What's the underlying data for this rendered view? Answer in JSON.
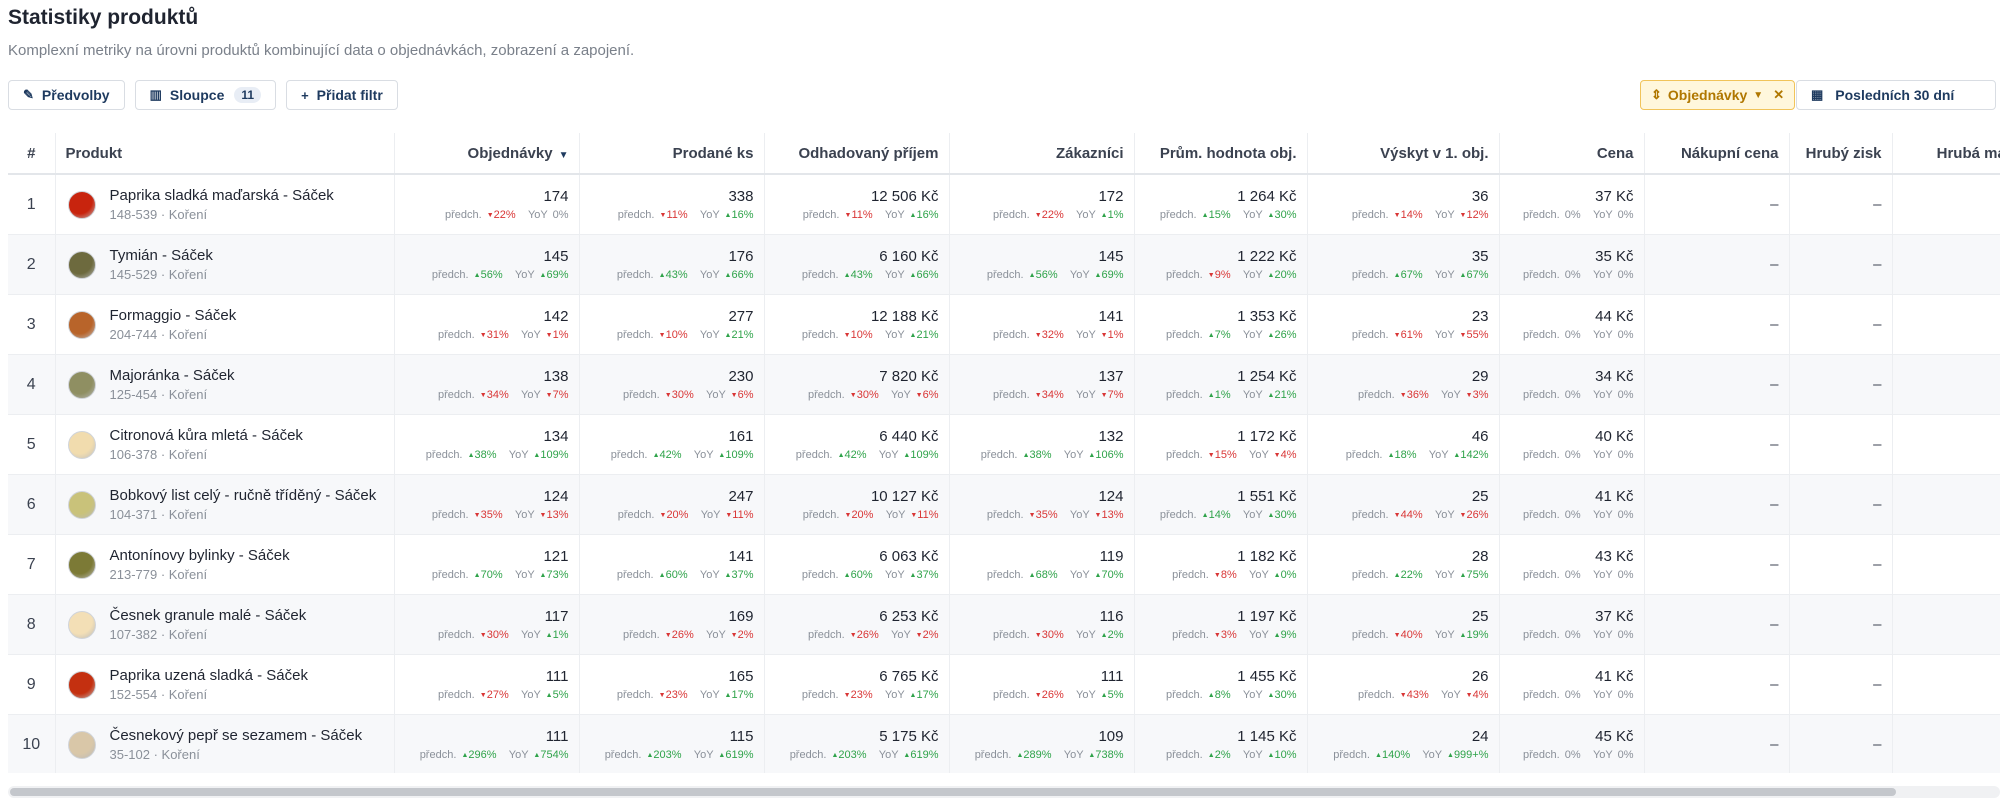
{
  "page": {
    "title": "Statistiky produktů",
    "subtitle": "Komplexní metriky na úrovni produktů kombinující data o objednávkách, zobrazení a zapojení."
  },
  "toolbar": {
    "presets_label": "Předvolby",
    "presets_icon": "pencil-icon",
    "columns_label": "Sloupce",
    "columns_icon": "table-columns-icon",
    "columns_count": "11",
    "add_filter_label": "Přidat filtr",
    "add_filter_icon": "plus-icon",
    "sort_label": "Objednávky",
    "sort_icon": "sort-icon",
    "date_label": "Posledních 30 dní",
    "date_icon": "calendar-icon"
  },
  "colors": {
    "accent": "#1e3a5f",
    "up": "#2fa34a",
    "down": "#d93636",
    "sort_bg": "#fff7dc",
    "sort_border": "#f1c45a"
  },
  "delta_labels": {
    "prev": "předch.",
    "yoy": "YoY"
  },
  "table": {
    "headers": {
      "idx": "#",
      "product": "Produkt",
      "orders": "Objednávky",
      "units": "Prodané ks",
      "revenue": "Odhadovaný příjem",
      "customers": "Zákazníci",
      "aov": "Prům. hodnota obj.",
      "first": "Výskyt v 1. obj.",
      "price": "Cena",
      "cost": "Nákupní cena",
      "gross_profit": "Hrubý zisk",
      "gross_margin": "Hrubá marže"
    },
    "dash": "–",
    "rows": [
      {
        "idx": "1",
        "name": "Paprika sladká maďarská - Sáček",
        "sku": "148-539 · Koření",
        "thumb": "#c8240e",
        "orders": {
          "v": "174",
          "p": "22%",
          "pd": "dn",
          "y": "0%",
          "yd": "zero"
        },
        "units": {
          "v": "338",
          "p": "11%",
          "pd": "dn",
          "y": "16%",
          "yd": "up"
        },
        "revenue": {
          "v": "12 506 Kč",
          "p": "11%",
          "pd": "dn",
          "y": "16%",
          "yd": "up"
        },
        "customers": {
          "v": "172",
          "p": "22%",
          "pd": "dn",
          "y": "1%",
          "yd": "up"
        },
        "aov": {
          "v": "1 264 Kč",
          "p": "15%",
          "pd": "up",
          "y": "30%",
          "yd": "up"
        },
        "first": {
          "v": "36",
          "p": "14%",
          "pd": "dn",
          "y": "12%",
          "yd": "dn"
        },
        "price": {
          "v": "37 Kč",
          "p": "0%",
          "pd": "zero",
          "y": "0%",
          "yd": "zero"
        }
      },
      {
        "idx": "2",
        "name": "Tymián - Sáček",
        "sku": "145-529 · Koření",
        "thumb": "#6d6a3e",
        "orders": {
          "v": "145",
          "p": "56%",
          "pd": "up",
          "y": "69%",
          "yd": "up"
        },
        "units": {
          "v": "176",
          "p": "43%",
          "pd": "up",
          "y": "66%",
          "yd": "up"
        },
        "revenue": {
          "v": "6 160 Kč",
          "p": "43%",
          "pd": "up",
          "y": "66%",
          "yd": "up"
        },
        "customers": {
          "v": "145",
          "p": "56%",
          "pd": "up",
          "y": "69%",
          "yd": "up"
        },
        "aov": {
          "v": "1 222 Kč",
          "p": "9%",
          "pd": "dn",
          "y": "20%",
          "yd": "up"
        },
        "first": {
          "v": "35",
          "p": "67%",
          "pd": "up",
          "y": "67%",
          "yd": "up"
        },
        "price": {
          "v": "35 Kč",
          "p": "0%",
          "pd": "zero",
          "y": "0%",
          "yd": "zero"
        }
      },
      {
        "idx": "3",
        "name": "Formaggio - Sáček",
        "sku": "204-744 · Koření",
        "thumb": "#b8642a",
        "orders": {
          "v": "142",
          "p": "31%",
          "pd": "dn",
          "y": "1%",
          "yd": "dn"
        },
        "units": {
          "v": "277",
          "p": "10%",
          "pd": "dn",
          "y": "21%",
          "yd": "up"
        },
        "revenue": {
          "v": "12 188 Kč",
          "p": "10%",
          "pd": "dn",
          "y": "21%",
          "yd": "up"
        },
        "customers": {
          "v": "141",
          "p": "32%",
          "pd": "dn",
          "y": "1%",
          "yd": "dn"
        },
        "aov": {
          "v": "1 353 Kč",
          "p": "7%",
          "pd": "up",
          "y": "26%",
          "yd": "up"
        },
        "first": {
          "v": "23",
          "p": "61%",
          "pd": "dn",
          "y": "55%",
          "yd": "dn"
        },
        "price": {
          "v": "44 Kč",
          "p": "0%",
          "pd": "zero",
          "y": "0%",
          "yd": "zero"
        }
      },
      {
        "idx": "4",
        "name": "Majoránka - Sáček",
        "sku": "125-454 · Koření",
        "thumb": "#8f8f62",
        "orders": {
          "v": "138",
          "p": "34%",
          "pd": "dn",
          "y": "7%",
          "yd": "dn"
        },
        "units": {
          "v": "230",
          "p": "30%",
          "pd": "dn",
          "y": "6%",
          "yd": "dn"
        },
        "revenue": {
          "v": "7 820 Kč",
          "p": "30%",
          "pd": "dn",
          "y": "6%",
          "yd": "dn"
        },
        "customers": {
          "v": "137",
          "p": "34%",
          "pd": "dn",
          "y": "7%",
          "yd": "dn"
        },
        "aov": {
          "v": "1 254 Kč",
          "p": "1%",
          "pd": "up",
          "y": "21%",
          "yd": "up"
        },
        "first": {
          "v": "29",
          "p": "36%",
          "pd": "dn",
          "y": "3%",
          "yd": "dn"
        },
        "price": {
          "v": "34 Kč",
          "p": "0%",
          "pd": "zero",
          "y": "0%",
          "yd": "zero"
        }
      },
      {
        "idx": "5",
        "name": "Citronová kůra mletá - Sáček",
        "sku": "106-378 · Koření",
        "thumb": "#f1dcae",
        "orders": {
          "v": "134",
          "p": "38%",
          "pd": "up",
          "y": "109%",
          "yd": "up"
        },
        "units": {
          "v": "161",
          "p": "42%",
          "pd": "up",
          "y": "109%",
          "yd": "up"
        },
        "revenue": {
          "v": "6 440 Kč",
          "p": "42%",
          "pd": "up",
          "y": "109%",
          "yd": "up"
        },
        "customers": {
          "v": "132",
          "p": "38%",
          "pd": "up",
          "y": "106%",
          "yd": "up"
        },
        "aov": {
          "v": "1 172 Kč",
          "p": "15%",
          "pd": "dn",
          "y": "4%",
          "yd": "dn"
        },
        "first": {
          "v": "46",
          "p": "18%",
          "pd": "up",
          "y": "142%",
          "yd": "up"
        },
        "price": {
          "v": "40 Kč",
          "p": "0%",
          "pd": "zero",
          "y": "0%",
          "yd": "zero"
        }
      },
      {
        "idx": "6",
        "name": "Bobkový list celý - ručně tříděný - Sáček",
        "sku": "104-371 · Koření",
        "thumb": "#c9c27a",
        "orders": {
          "v": "124",
          "p": "35%",
          "pd": "dn",
          "y": "13%",
          "yd": "dn"
        },
        "units": {
          "v": "247",
          "p": "20%",
          "pd": "dn",
          "y": "11%",
          "yd": "dn"
        },
        "revenue": {
          "v": "10 127 Kč",
          "p": "20%",
          "pd": "dn",
          "y": "11%",
          "yd": "dn"
        },
        "customers": {
          "v": "124",
          "p": "35%",
          "pd": "dn",
          "y": "13%",
          "yd": "dn"
        },
        "aov": {
          "v": "1 551 Kč",
          "p": "14%",
          "pd": "up",
          "y": "30%",
          "yd": "up"
        },
        "first": {
          "v": "25",
          "p": "44%",
          "pd": "dn",
          "y": "26%",
          "yd": "dn"
        },
        "price": {
          "v": "41 Kč",
          "p": "0%",
          "pd": "zero",
          "y": "0%",
          "yd": "zero"
        }
      },
      {
        "idx": "7",
        "name": "Antonínovy bylinky - Sáček",
        "sku": "213-779 · Koření",
        "thumb": "#7c7a36",
        "orders": {
          "v": "121",
          "p": "70%",
          "pd": "up",
          "y": "73%",
          "yd": "up"
        },
        "units": {
          "v": "141",
          "p": "60%",
          "pd": "up",
          "y": "37%",
          "yd": "up"
        },
        "revenue": {
          "v": "6 063 Kč",
          "p": "60%",
          "pd": "up",
          "y": "37%",
          "yd": "up"
        },
        "customers": {
          "v": "119",
          "p": "68%",
          "pd": "up",
          "y": "70%",
          "yd": "up"
        },
        "aov": {
          "v": "1 182 Kč",
          "p": "8%",
          "pd": "dn",
          "y": "0%",
          "yd": "up"
        },
        "first": {
          "v": "28",
          "p": "22%",
          "pd": "up",
          "y": "75%",
          "yd": "up"
        },
        "price": {
          "v": "43 Kč",
          "p": "0%",
          "pd": "zero",
          "y": "0%",
          "yd": "zero"
        }
      },
      {
        "idx": "8",
        "name": "Česnek granule malé - Sáček",
        "sku": "107-382 · Koření",
        "thumb": "#f3dfb6",
        "orders": {
          "v": "117",
          "p": "30%",
          "pd": "dn",
          "y": "1%",
          "yd": "up"
        },
        "units": {
          "v": "169",
          "p": "26%",
          "pd": "dn",
          "y": "2%",
          "yd": "dn"
        },
        "revenue": {
          "v": "6 253 Kč",
          "p": "26%",
          "pd": "dn",
          "y": "2%",
          "yd": "dn"
        },
        "customers": {
          "v": "116",
          "p": "30%",
          "pd": "dn",
          "y": "2%",
          "yd": "up"
        },
        "aov": {
          "v": "1 197 Kč",
          "p": "3%",
          "pd": "dn",
          "y": "9%",
          "yd": "up"
        },
        "first": {
          "v": "25",
          "p": "40%",
          "pd": "dn",
          "y": "19%",
          "yd": "up"
        },
        "price": {
          "v": "37 Kč",
          "p": "0%",
          "pd": "zero",
          "y": "0%",
          "yd": "zero"
        }
      },
      {
        "idx": "9",
        "name": "Paprika uzená sladká - Sáček",
        "sku": "152-554 · Koření",
        "thumb": "#c43010",
        "orders": {
          "v": "111",
          "p": "27%",
          "pd": "dn",
          "y": "5%",
          "yd": "up"
        },
        "units": {
          "v": "165",
          "p": "23%",
          "pd": "dn",
          "y": "17%",
          "yd": "up"
        },
        "revenue": {
          "v": "6 765 Kč",
          "p": "23%",
          "pd": "dn",
          "y": "17%",
          "yd": "up"
        },
        "customers": {
          "v": "111",
          "p": "26%",
          "pd": "dn",
          "y": "5%",
          "yd": "up"
        },
        "aov": {
          "v": "1 455 Kč",
          "p": "8%",
          "pd": "up",
          "y": "30%",
          "yd": "up"
        },
        "first": {
          "v": "26",
          "p": "43%",
          "pd": "dn",
          "y": "4%",
          "yd": "dn"
        },
        "price": {
          "v": "41 Kč",
          "p": "0%",
          "pd": "zero",
          "y": "0%",
          "yd": "zero"
        }
      },
      {
        "idx": "10",
        "name": "Česnekový pepř se sezamem - Sáček",
        "sku": "35-102 · Koření",
        "thumb": "#d9c7a8",
        "orders": {
          "v": "111",
          "p": "296%",
          "pd": "up",
          "y": "754%",
          "yd": "up"
        },
        "units": {
          "v": "115",
          "p": "203%",
          "pd": "up",
          "y": "619%",
          "yd": "up"
        },
        "revenue": {
          "v": "5 175 Kč",
          "p": "203%",
          "pd": "up",
          "y": "619%",
          "yd": "up"
        },
        "customers": {
          "v": "109",
          "p": "289%",
          "pd": "up",
          "y": "738%",
          "yd": "up"
        },
        "aov": {
          "v": "1 145 Kč",
          "p": "2%",
          "pd": "up",
          "y": "10%",
          "yd": "up"
        },
        "first": {
          "v": "24",
          "p": "140%",
          "pd": "up",
          "y": "999+%",
          "yd": "up"
        },
        "price": {
          "v": "45 Kč",
          "p": "0%",
          "pd": "zero",
          "y": "0%",
          "yd": "zero"
        }
      }
    ]
  }
}
